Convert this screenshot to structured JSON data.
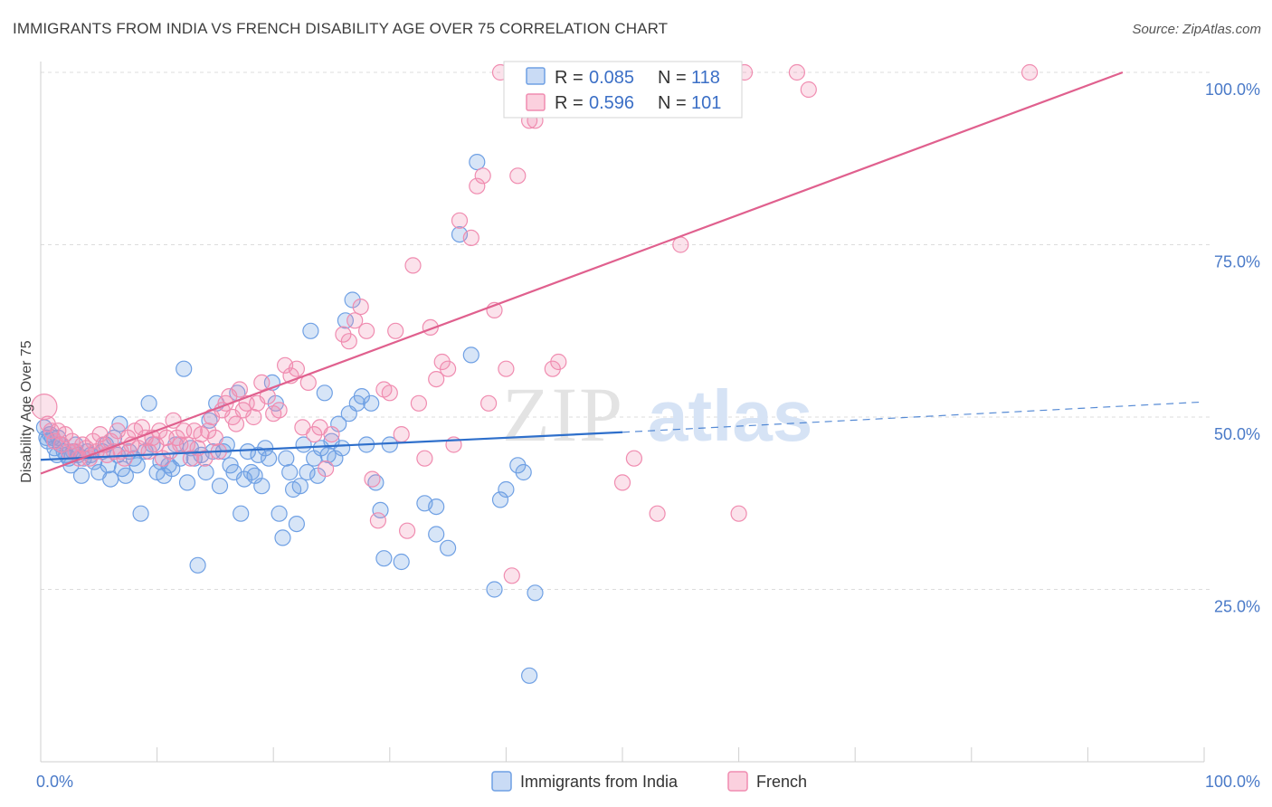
{
  "header": {
    "title": "IMMIGRANTS FROM INDIA VS FRENCH DISABILITY AGE OVER 75 CORRELATION CHART",
    "source": "Source: ZipAtlas.com"
  },
  "watermark": {
    "zip": "ZIP",
    "atlas": "atlas"
  },
  "legend_box": [
    {
      "r_label": "R =",
      "r_value": "0.085",
      "n_label": "N =",
      "n_value": "118",
      "color": "#6fa0e4"
    },
    {
      "r_label": "R =",
      "r_value": "0.596",
      "n_label": "N =",
      "n_value": "101",
      "color": "#f08cb0"
    }
  ],
  "bottom_legend": [
    {
      "label": "Immigrants from India",
      "color": "#6fa0e4"
    },
    {
      "label": "French",
      "color": "#f08cb0"
    }
  ],
  "chart_data": {
    "type": "scatter",
    "title": "IMMIGRANTS FROM INDIA VS FRENCH DISABILITY AGE OVER 75 CORRELATION CHART",
    "xlabel": "",
    "ylabel": "Disability Age Over 75",
    "xlim": [
      0,
      100
    ],
    "ylim": [
      0,
      104
    ],
    "x_tick_labels": [
      {
        "value": 0,
        "label": "0.0%"
      },
      {
        "value": 100,
        "label": "100.0%"
      }
    ],
    "y_tick_labels": [
      {
        "value": 25,
        "label": "25.0%"
      },
      {
        "value": 50,
        "label": "50.0%"
      },
      {
        "value": 75,
        "label": "75.0%"
      },
      {
        "value": 100,
        "label": "100.0%"
      }
    ],
    "grid": "horizontal dashed",
    "series": [
      {
        "name": "Immigrants from India",
        "color": "#6fa0e4",
        "line_color": "#2e6fcb",
        "r": 0.085,
        "n": 118,
        "trend": {
          "solid": [
            [
              0,
              43.8
            ],
            [
              50,
              47.8
            ]
          ],
          "dashed": [
            [
              50,
              47.8
            ],
            [
              100,
              52.2
            ]
          ]
        },
        "points": [
          [
            0.3,
            48.5
          ],
          [
            0.5,
            47
          ],
          [
            0.6,
            46.5
          ],
          [
            0.8,
            47.5
          ],
          [
            1,
            47
          ],
          [
            1.2,
            45.5
          ],
          [
            1.4,
            44.5
          ],
          [
            1.5,
            47
          ],
          [
            1.7,
            46
          ],
          [
            2,
            45
          ],
          [
            2.2,
            44.5
          ],
          [
            2.4,
            44
          ],
          [
            2.6,
            43
          ],
          [
            2.8,
            45
          ],
          [
            3,
            46
          ],
          [
            3.2,
            44.5
          ],
          [
            3.5,
            41.5
          ],
          [
            3.7,
            44
          ],
          [
            4,
            45
          ],
          [
            4.3,
            44.5
          ],
          [
            4.6,
            43.5
          ],
          [
            5,
            42
          ],
          [
            5.3,
            45
          ],
          [
            5.6,
            46
          ],
          [
            5.8,
            43
          ],
          [
            6,
            41
          ],
          [
            6.3,
            47
          ],
          [
            6.6,
            44.5
          ],
          [
            6.8,
            49
          ],
          [
            7,
            42.5
          ],
          [
            7.3,
            41.5
          ],
          [
            7.6,
            45
          ],
          [
            8,
            44
          ],
          [
            8.3,
            43
          ],
          [
            8.6,
            36
          ],
          [
            9,
            45
          ],
          [
            9.3,
            52
          ],
          [
            9.6,
            46
          ],
          [
            10,
            42
          ],
          [
            10.3,
            43.5
          ],
          [
            10.6,
            41.5
          ],
          [
            11,
            43
          ],
          [
            11.3,
            42.5
          ],
          [
            11.6,
            46
          ],
          [
            12,
            44
          ],
          [
            12.3,
            57
          ],
          [
            12.6,
            40.5
          ],
          [
            12.9,
            45.5
          ],
          [
            13.2,
            44
          ],
          [
            13.5,
            28.5
          ],
          [
            13.8,
            44.5
          ],
          [
            14.2,
            42
          ],
          [
            14.5,
            49.5
          ],
          [
            14.8,
            45
          ],
          [
            15.1,
            52
          ],
          [
            15.4,
            40
          ],
          [
            15.7,
            45
          ],
          [
            16,
            46
          ],
          [
            16.3,
            43
          ],
          [
            16.6,
            42
          ],
          [
            16.9,
            53.5
          ],
          [
            17.2,
            36
          ],
          [
            17.5,
            41
          ],
          [
            17.8,
            45
          ],
          [
            18.1,
            42
          ],
          [
            18.4,
            41.5
          ],
          [
            18.7,
            44.5
          ],
          [
            19,
            40
          ],
          [
            19.3,
            45.5
          ],
          [
            19.6,
            44
          ],
          [
            19.9,
            55
          ],
          [
            20.2,
            52
          ],
          [
            20.5,
            36
          ],
          [
            20.8,
            32.5
          ],
          [
            21.1,
            44
          ],
          [
            21.4,
            42
          ],
          [
            21.7,
            39.5
          ],
          [
            22,
            34.5
          ],
          [
            22.3,
            40
          ],
          [
            22.6,
            46
          ],
          [
            22.9,
            42
          ],
          [
            23.2,
            62.5
          ],
          [
            23.5,
            44
          ],
          [
            23.8,
            41.5
          ],
          [
            24.1,
            45.5
          ],
          [
            24.4,
            53.5
          ],
          [
            24.7,
            44.5
          ],
          [
            25,
            46.5
          ],
          [
            25.3,
            44
          ],
          [
            25.6,
            49
          ],
          [
            25.9,
            45.5
          ],
          [
            26.2,
            64
          ],
          [
            26.5,
            50.5
          ],
          [
            26.8,
            67
          ],
          [
            27.2,
            52
          ],
          [
            27.6,
            53
          ],
          [
            28,
            46
          ],
          [
            28.4,
            52
          ],
          [
            28.8,
            40.5
          ],
          [
            29.2,
            36.5
          ],
          [
            29.5,
            29.5
          ],
          [
            30,
            46
          ],
          [
            31,
            29
          ],
          [
            33,
            37.5
          ],
          [
            34,
            37
          ],
          [
            34,
            33
          ],
          [
            35,
            31
          ],
          [
            36,
            76.5
          ],
          [
            37,
            59
          ],
          [
            37.5,
            87
          ],
          [
            39,
            25
          ],
          [
            39.5,
            38
          ],
          [
            40,
            39.5
          ],
          [
            41,
            43
          ],
          [
            41.5,
            42
          ],
          [
            42,
            12.5
          ],
          [
            42.5,
            24.5
          ]
        ]
      },
      {
        "name": "French",
        "color": "#f08cb0",
        "line_color": "#e0608e",
        "r": 0.596,
        "n": 101,
        "trend": {
          "solid": [
            [
              0,
              41.8
            ],
            [
              93,
              100
            ]
          ]
        },
        "points": [
          [
            0.3,
            51.5
          ],
          [
            0.6,
            49
          ],
          [
            0.9,
            48
          ],
          [
            1.2,
            46.5
          ],
          [
            1.5,
            48
          ],
          [
            1.8,
            46
          ],
          [
            2.1,
            47.5
          ],
          [
            2.4,
            45
          ],
          [
            2.7,
            46.5
          ],
          [
            3,
            45
          ],
          [
            3.3,
            44
          ],
          [
            3.6,
            46
          ],
          [
            3.9,
            45.5
          ],
          [
            4.2,
            44
          ],
          [
            4.5,
            46.5
          ],
          [
            4.8,
            45
          ],
          [
            5.1,
            47.5
          ],
          [
            5.4,
            46
          ],
          [
            5.7,
            44.5
          ],
          [
            6,
            46.5
          ],
          [
            6.3,
            45
          ],
          [
            6.6,
            48
          ],
          [
            6.9,
            45
          ],
          [
            7.2,
            44
          ],
          [
            7.5,
            47
          ],
          [
            7.8,
            46
          ],
          [
            8.1,
            48
          ],
          [
            8.4,
            45.5
          ],
          [
            8.7,
            48.5
          ],
          [
            9,
            47
          ],
          [
            9.3,
            45
          ],
          [
            9.6,
            47
          ],
          [
            9.9,
            46
          ],
          [
            10.2,
            48
          ],
          [
            10.5,
            44
          ],
          [
            10.8,
            47
          ],
          [
            11.1,
            45
          ],
          [
            11.4,
            49.5
          ],
          [
            11.7,
            47
          ],
          [
            12,
            46
          ],
          [
            12.3,
            48
          ],
          [
            12.6,
            46
          ],
          [
            12.9,
            44
          ],
          [
            13.2,
            48
          ],
          [
            13.5,
            45.5
          ],
          [
            13.8,
            47.5
          ],
          [
            14.1,
            44
          ],
          [
            14.4,
            48
          ],
          [
            14.7,
            50
          ],
          [
            15,
            47
          ],
          [
            15.3,
            45
          ],
          [
            15.6,
            51
          ],
          [
            15.9,
            52
          ],
          [
            16.2,
            53
          ],
          [
            16.5,
            50
          ],
          [
            16.8,
            49
          ],
          [
            17.1,
            54
          ],
          [
            17.4,
            51
          ],
          [
            17.7,
            52
          ],
          [
            18.3,
            50
          ],
          [
            18.6,
            52
          ],
          [
            19,
            55
          ],
          [
            19.5,
            53
          ],
          [
            20,
            50.5
          ],
          [
            20.5,
            51
          ],
          [
            21,
            57.5
          ],
          [
            21.5,
            56
          ],
          [
            22,
            57
          ],
          [
            22.5,
            48.5
          ],
          [
            23,
            55
          ],
          [
            23.5,
            47.5
          ],
          [
            24,
            48.5
          ],
          [
            24.5,
            42.5
          ],
          [
            25,
            47.5
          ],
          [
            26,
            62
          ],
          [
            26.5,
            61
          ],
          [
            27,
            64
          ],
          [
            27.5,
            66
          ],
          [
            28,
            62.5
          ],
          [
            28.5,
            41
          ],
          [
            29,
            35
          ],
          [
            29.5,
            54
          ],
          [
            30,
            53.5
          ],
          [
            30.5,
            62.5
          ],
          [
            31,
            47.5
          ],
          [
            31.5,
            33.5
          ],
          [
            32,
            72
          ],
          [
            32.5,
            52
          ],
          [
            33,
            44
          ],
          [
            33.5,
            63
          ],
          [
            34,
            55.5
          ],
          [
            34.5,
            58
          ],
          [
            35,
            57
          ],
          [
            35.5,
            46
          ],
          [
            36,
            78.5
          ],
          [
            37,
            76
          ],
          [
            37.5,
            83.5
          ],
          [
            38,
            85
          ],
          [
            38.5,
            52
          ],
          [
            39,
            65.5
          ],
          [
            39.5,
            100
          ],
          [
            40,
            57
          ],
          [
            40.5,
            27
          ],
          [
            41,
            85
          ],
          [
            42,
            93
          ],
          [
            42.5,
            93
          ],
          [
            43,
            97.5
          ],
          [
            44,
            57
          ],
          [
            44.5,
            58
          ],
          [
            45,
            100
          ],
          [
            50,
            40.5
          ],
          [
            51,
            44
          ],
          [
            53,
            36
          ],
          [
            55,
            75
          ],
          [
            60,
            36
          ],
          [
            60.5,
            100
          ],
          [
            65,
            100
          ],
          [
            66,
            97.5
          ],
          [
            85,
            100
          ]
        ]
      }
    ]
  }
}
